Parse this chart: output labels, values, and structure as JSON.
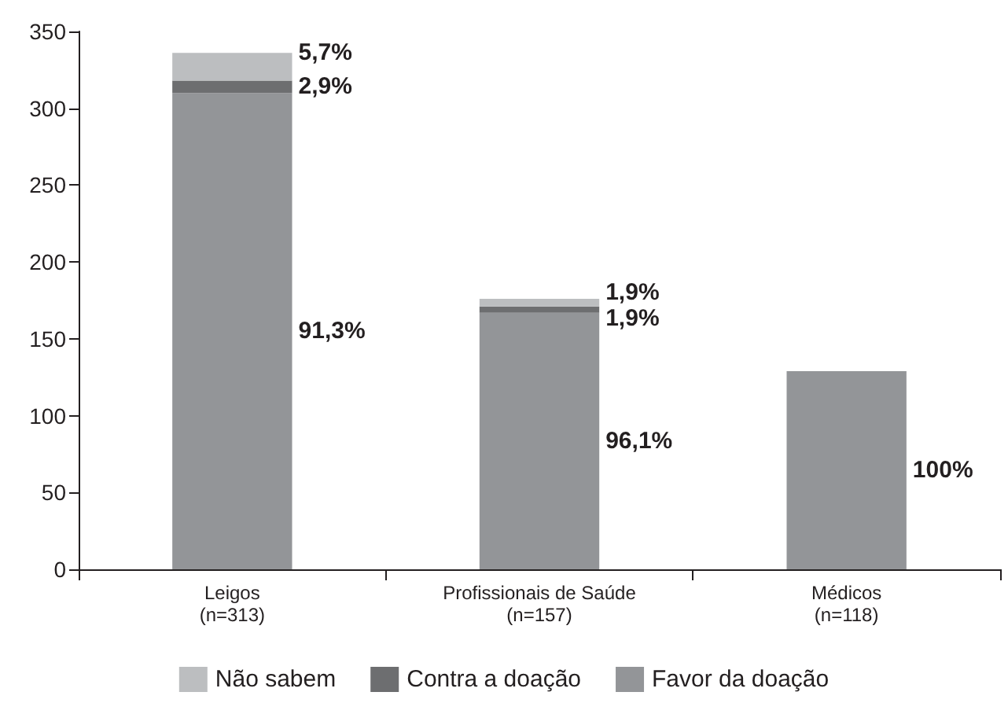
{
  "chart_data": {
    "type": "bar",
    "stacked": true,
    "categories": [
      "Leigos\n(n=313)",
      "Profissionais de Saúde\n(n=157)",
      "Médicos\n(n=118)"
    ],
    "series": [
      {
        "name": "Favor da doação",
        "color": "#939598",
        "values": [
          310,
          167,
          129
        ]
      },
      {
        "name": "Contra a doação",
        "color": "#6d6e70",
        "values": [
          8,
          4,
          null
        ]
      },
      {
        "name": "Não sabem",
        "color": "#bcbec0",
        "values": [
          18,
          5,
          null
        ]
      }
    ],
    "annotations": [
      {
        "text": "5,7%",
        "x": "Leigos\n(n=313)",
        "y": 336
      },
      {
        "text": "2,9%",
        "x": "Leigos\n(n=313)",
        "y": 314
      },
      "91,3%",
      {
        "text": "1,9%",
        "x": "Profissionais de Saúde\n(n=157)",
        "y": 180
      },
      {
        "text": "1,9%",
        "x": "Profissionais de Saúde\n(n=157)",
        "y": 163
      },
      "96,1%",
      "100%"
    ],
    "ylim": [
      0,
      350
    ],
    "yticks": [
      0,
      50,
      100,
      150,
      200,
      250,
      300,
      350
    ],
    "grid": false,
    "legend": "bottom"
  }
}
